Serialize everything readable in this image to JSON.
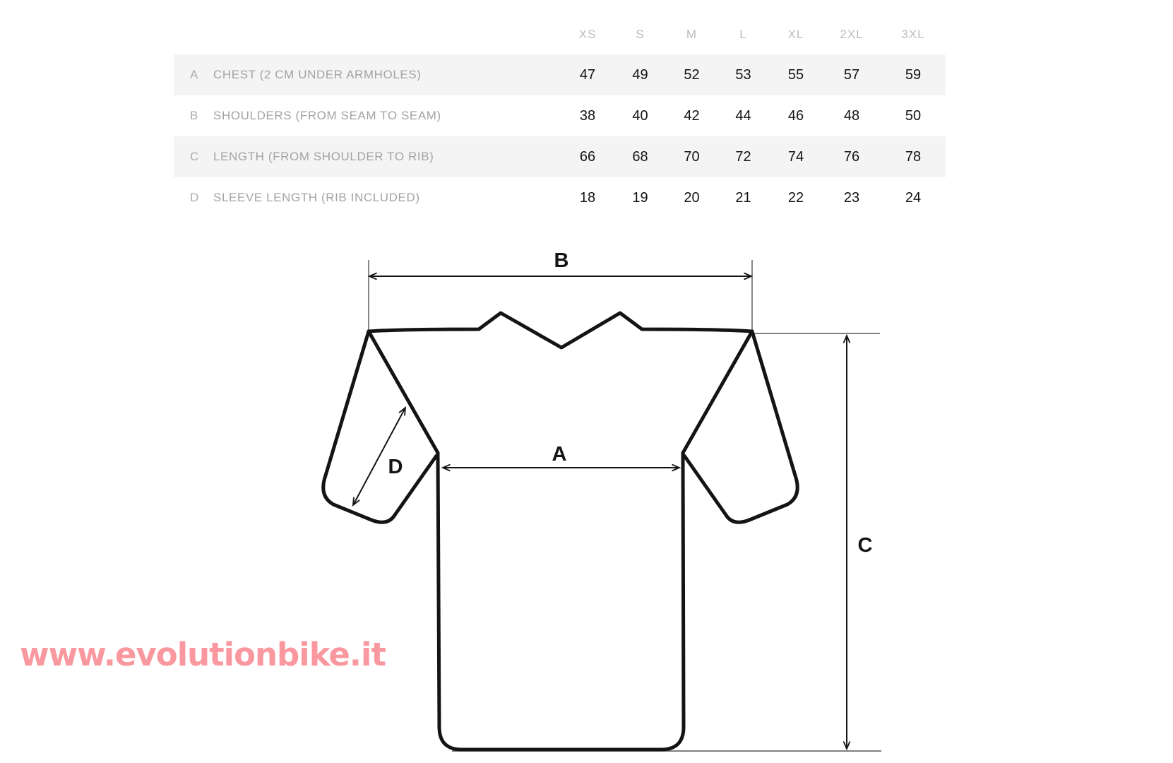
{
  "watermark": {
    "text": "www.evolutionbike.it",
    "color": "#f9989f"
  },
  "size_chart": {
    "sizes": [
      "XS",
      "S",
      "M",
      "L",
      "XL",
      "2XL",
      "3XL"
    ],
    "rows": [
      {
        "key": "A",
        "label": "CHEST (2 CM UNDER ARMHOLES)",
        "values": [
          47,
          49,
          52,
          53,
          55,
          57,
          59
        ],
        "shaded": true
      },
      {
        "key": "B",
        "label": "SHOULDERS (FROM SEAM TO SEAM)",
        "values": [
          38,
          40,
          42,
          44,
          46,
          48,
          50
        ],
        "shaded": false
      },
      {
        "key": "C",
        "label": "LENGTH (FROM SHOULDER TO RIB)",
        "values": [
          66,
          68,
          70,
          72,
          74,
          76,
          78
        ],
        "shaded": true
      },
      {
        "key": "D",
        "label": "SLEEVE LENGTH (RIB INCLUDED)",
        "values": [
          18,
          19,
          20,
          21,
          22,
          23,
          24
        ],
        "shaded": false
      }
    ]
  },
  "diagram": {
    "labels": {
      "A": "A",
      "B": "B",
      "C": "C",
      "D": "D"
    },
    "outline_color": "#141414",
    "extension_line_color": "#555555"
  }
}
